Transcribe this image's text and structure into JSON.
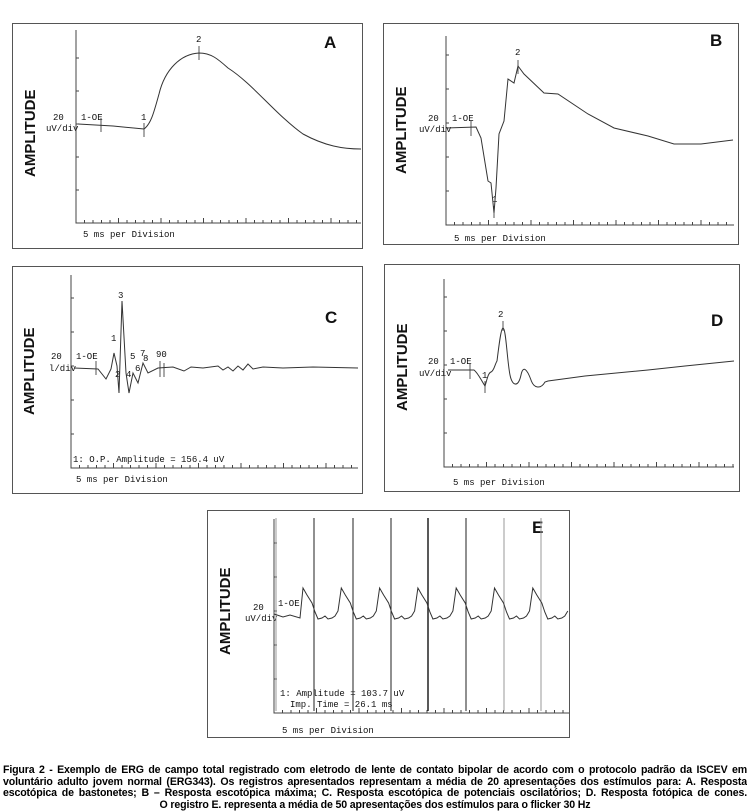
{
  "panels": {
    "A": {
      "letter": "A",
      "ylabel": "AMPLITUDE",
      "scale_value": "20",
      "scale_unit": "uV/div",
      "channel": "1-OE",
      "xlabel": "5 ms per Division",
      "markers": [
        "1",
        "2"
      ]
    },
    "B": {
      "letter": "B",
      "ylabel": "AMPLITUDE",
      "scale_value": "20",
      "scale_unit": "uV/div",
      "channel": "1-OE",
      "xlabel": "5 ms per Division",
      "markers": [
        "1",
        "2"
      ]
    },
    "C": {
      "letter": "C",
      "ylabel": "AMPLITUDE",
      "scale_value": "20",
      "scale_unit": "l/div",
      "channel": "1-OE",
      "xlabel": "5 ms per Division",
      "markers": [
        "1",
        "2",
        "3",
        "4",
        "5",
        "6",
        "7",
        "8",
        "90"
      ],
      "readout": "1: O.P. Amplitude = 156.4 uV"
    },
    "D": {
      "letter": "D",
      "ylabel": "AMPLITUDE",
      "scale_value": "20",
      "scale_unit": "uV/div",
      "channel": "1-OE",
      "xlabel": "5 ms per Division",
      "markers": [
        "1",
        "2"
      ]
    },
    "E": {
      "letter": "E",
      "ylabel": "AMPLITUDE",
      "scale_value": "20",
      "scale_unit": "uV/div",
      "channel": "1-OE",
      "xlabel": "5 ms per Division",
      "readout1": "1: Amplitude = 103.7 uV",
      "readout2": "Imp. Time =  26.1 ms"
    }
  },
  "caption": {
    "lines": [
      "Figura 2 - Exemplo de ERG de campo total registrado com eletrodo de lente de contato bipolar de acordo com o protocolo padrão da ISCEV em",
      "voluntário adulto jovem normal (ERG343). Os registros apresentados representam a média de 20 apresentações dos estímulos para: A. Resposta",
      "escotópica de bastonetes; B – Resposta escotópica máxima; C. Resposta escotópica de potenciais oscilatórios; D. Resposta fotópica de cones.",
      "O registro E. representa a média de 50 apresentações dos estímulos para o flicker 30 Hz"
    ]
  }
}
